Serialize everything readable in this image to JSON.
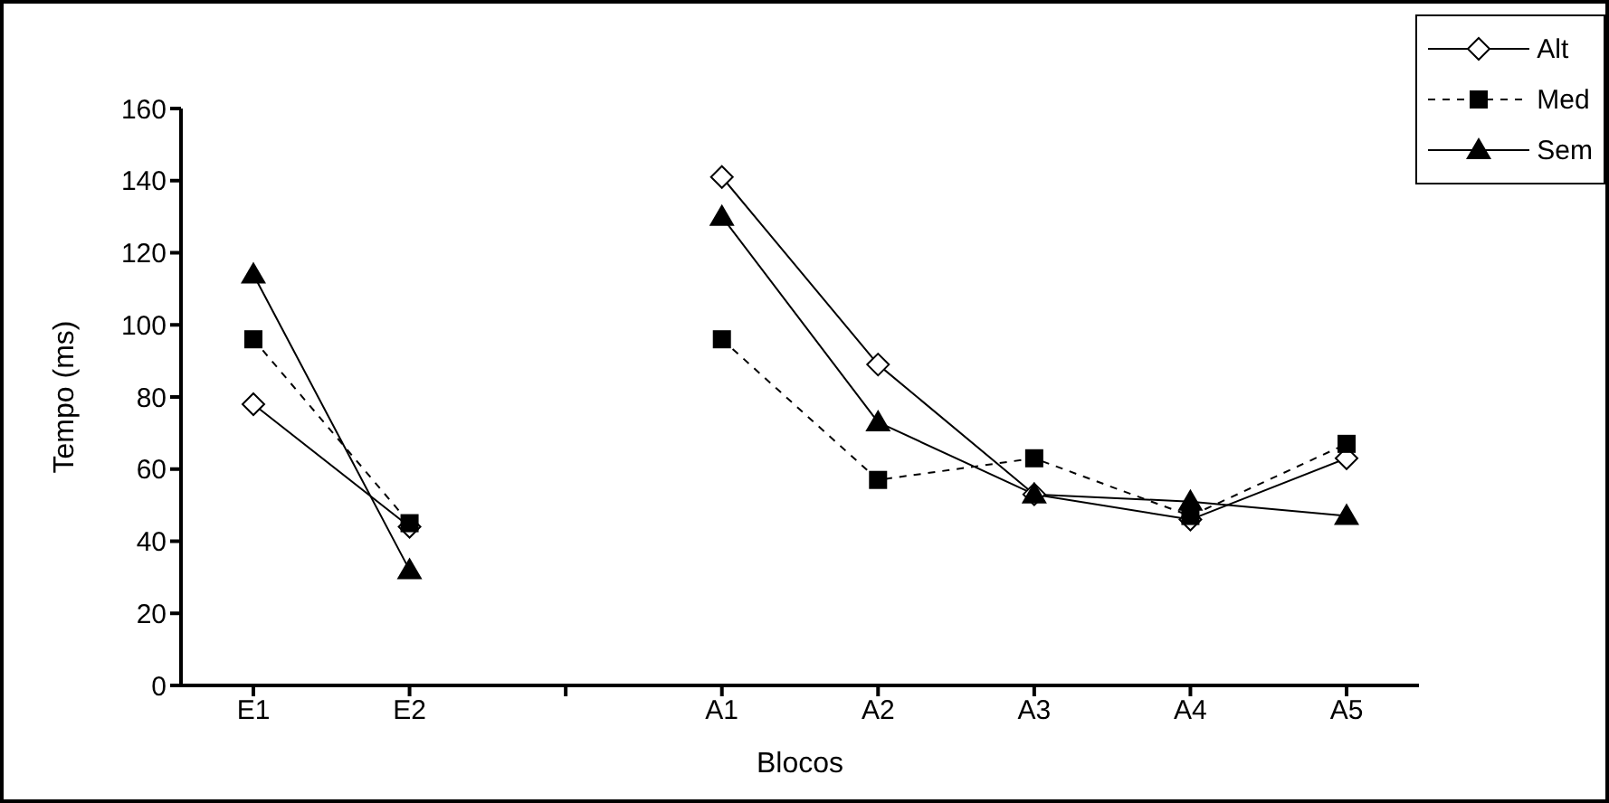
{
  "chart_data": {
    "type": "line",
    "xlabel": "Blocos",
    "ylabel": "Tempo (ms)",
    "categories": [
      "E1",
      "E2",
      null,
      "A1",
      "A2",
      "A3",
      "A4",
      "A5"
    ],
    "series": [
      {
        "name": "Alt",
        "color": "#000000",
        "marker": "diamond",
        "line_style": "solid",
        "values": [
          78,
          44,
          null,
          141,
          89,
          53,
          46,
          63
        ]
      },
      {
        "name": "Med",
        "color": "#000000",
        "marker": "square",
        "line_style": "dashed",
        "values": [
          96,
          45,
          null,
          96,
          57,
          63,
          47,
          67
        ]
      },
      {
        "name": "Sem",
        "color": "#000000",
        "marker": "triangle",
        "line_style": "solid",
        "values": [
          114,
          32,
          null,
          130,
          73,
          53,
          51,
          47
        ]
      }
    ],
    "ylim": [
      0,
      160
    ],
    "yticks": [
      0,
      20,
      40,
      60,
      80,
      100,
      120,
      140,
      160
    ],
    "grid": false,
    "legend": "top right"
  }
}
